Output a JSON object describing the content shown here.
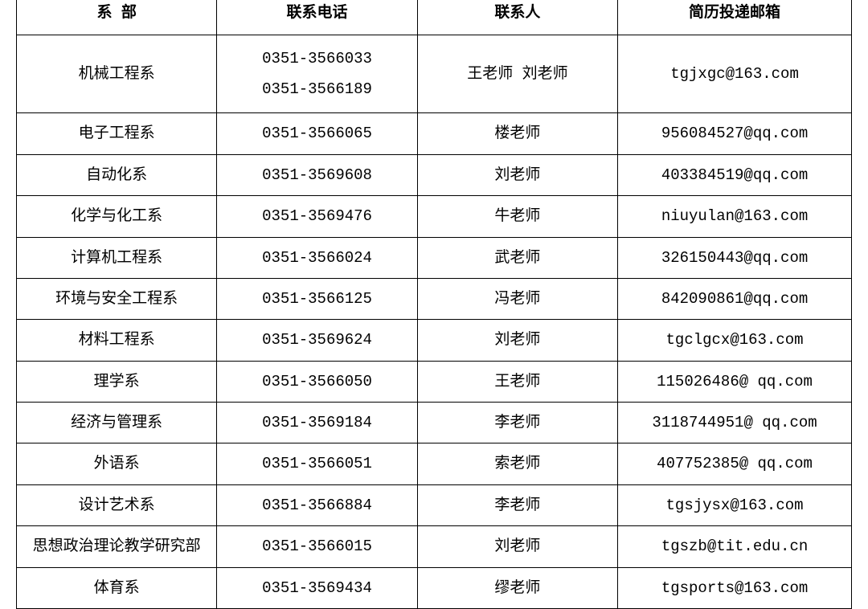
{
  "table": {
    "headers": {
      "department": "系 部",
      "phone": "联系电话",
      "contact": "联系人",
      "email": "简历投递邮箱"
    },
    "rows": [
      {
        "department": "机械工程系",
        "phone": "0351-3566033\n0351-3566189",
        "contact": "王老师 刘老师",
        "email": "tgjxgc@163.com"
      },
      {
        "department": "电子工程系",
        "phone": "0351-3566065",
        "contact": "楼老师",
        "email": "956084527@qq.com"
      },
      {
        "department": "自动化系",
        "phone": "0351-3569608",
        "contact": "刘老师",
        "email": "403384519@qq.com"
      },
      {
        "department": "化学与化工系",
        "phone": "0351-3569476",
        "contact": "牛老师",
        "email": "niuyulan@163.com"
      },
      {
        "department": "计算机工程系",
        "phone": "0351-3566024",
        "contact": "武老师",
        "email": "326150443@qq.com"
      },
      {
        "department": "环境与安全工程系",
        "phone": "0351-3566125",
        "contact": "冯老师",
        "email": "842090861@qq.com"
      },
      {
        "department": "材料工程系",
        "phone": "0351-3569624",
        "contact": "刘老师",
        "email": "tgclgcx@163.com"
      },
      {
        "department": "理学系",
        "phone": "0351-3566050",
        "contact": "王老师",
        "email": "115026486@  qq.com"
      },
      {
        "department": "经济与管理系",
        "phone": "0351-3569184",
        "contact": "李老师",
        "email": "3118744951@  qq.com"
      },
      {
        "department": "外语系",
        "phone": "0351-3566051",
        "contact": "索老师",
        "email": "407752385@  qq.com"
      },
      {
        "department": "设计艺术系",
        "phone": "0351-3566884",
        "contact": "李老师",
        "email": "tgsjysx@163.com"
      },
      {
        "department": "思想政治理论教学研究部",
        "phone": "0351-3566015",
        "contact": "刘老师",
        "email": "tgszb@tit.edu.cn"
      },
      {
        "department": "体育系",
        "phone": "0351-3569434",
        "contact": "缪老师",
        "email": "tgsports@163.com"
      }
    ],
    "styling": {
      "border_color": "#000000",
      "background_color": "#ffffff",
      "text_color": "#000000",
      "font_size": 19,
      "header_font_weight": "bold",
      "cell_padding": "10px 4px"
    }
  }
}
